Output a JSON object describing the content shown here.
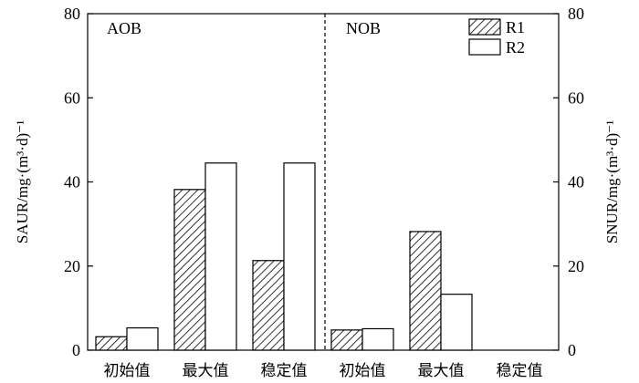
{
  "chart_data": {
    "type": "bar",
    "categories": [
      "初始值",
      "最大值",
      "稳定值",
      "初始值",
      "最大值",
      "稳定值"
    ],
    "series": [
      {
        "name": "R1",
        "values": [
          3.2,
          38.2,
          21.3,
          4.8,
          28.2,
          0
        ],
        "fill": "hatched"
      },
      {
        "name": "R2",
        "values": [
          5.3,
          44.5,
          44.5,
          5.1,
          13.3,
          0
        ],
        "fill": "#ffffff"
      }
    ],
    "panels": [
      {
        "label": "AOB",
        "categories": [
          0,
          1,
          2
        ]
      },
      {
        "label": "NOB",
        "categories": [
          3,
          4,
          5
        ]
      }
    ],
    "ylabel_left": "SAUR/mg·(m³·d)⁻¹",
    "ylabel_right": "SNUR/mg·(m³·d)⁻¹",
    "ylim": [
      0,
      80
    ],
    "yticks": [
      0,
      20,
      40,
      60,
      80
    ],
    "grid": false,
    "legend": "top-right",
    "separator": "dashed vertical line between AOB and NOB groups"
  }
}
